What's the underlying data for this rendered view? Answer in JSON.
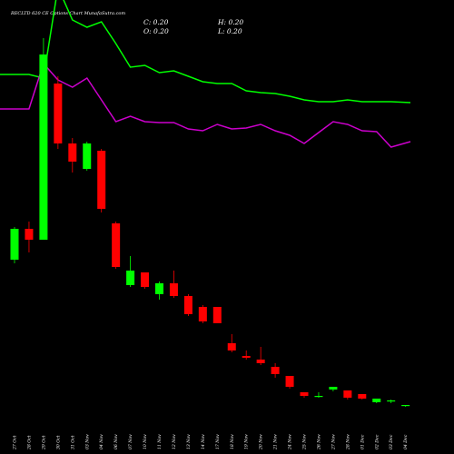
{
  "chart_data": {
    "type": "candlestick",
    "title": "RECLTD 620  CE Options  Chart MunafaSutra.com",
    "ohlc_readout": {
      "close": "C: 0.20",
      "open": "O: 0.20",
      "high": "H: 0.20",
      "low": "L: 0.20"
    },
    "categories": [
      "27 Oct",
      "28 Oct",
      "29 Oct",
      "30 Oct",
      "31 Oct",
      "03 Nov",
      "04 Nov",
      "06 Nov",
      "07 Nov",
      "10 Nov",
      "11 Nov",
      "12 Nov",
      "13 Nov",
      "14 Nov",
      "17 Nov",
      "18 Nov",
      "19 Nov",
      "20 Nov",
      "21 Nov",
      "24 Nov",
      "25 Nov",
      "26 Nov",
      "27 Nov",
      "28 Nov",
      "01 Dec",
      "02 Dec",
      "03 Dec",
      "04 Dec"
    ],
    "candles": [
      {
        "open": 3.2,
        "high": 5.0,
        "low": 3.0,
        "close": 4.9
      },
      {
        "open": 4.9,
        "high": 5.3,
        "low": 3.6,
        "close": 4.3
      },
      {
        "open": 4.3,
        "high": 15.4,
        "low": 4.3,
        "close": 14.5
      },
      {
        "open": 12.9,
        "high": 13.3,
        "low": 9.3,
        "close": 9.6
      },
      {
        "open": 9.6,
        "high": 9.9,
        "low": 8.0,
        "close": 8.6
      },
      {
        "open": 8.2,
        "high": 9.7,
        "low": 8.1,
        "close": 9.6
      },
      {
        "open": 9.2,
        "high": 9.3,
        "low": 5.8,
        "close": 6.0
      },
      {
        "open": 5.2,
        "high": 5.3,
        "low": 2.7,
        "close": 2.8
      },
      {
        "open": 1.8,
        "high": 3.4,
        "low": 1.7,
        "close": 2.6
      },
      {
        "open": 2.5,
        "high": 2.5,
        "low": 1.6,
        "close": 1.7
      },
      {
        "open": 1.3,
        "high": 2.0,
        "low": 1.0,
        "close": 1.9
      },
      {
        "open": 1.9,
        "high": 2.6,
        "low": 1.1,
        "close": 1.2
      },
      {
        "open": 1.2,
        "high": 1.3,
        "low": 0.1,
        "close": 0.2
      },
      {
        "open": 0.6,
        "high": 0.7,
        "low": -0.3,
        "close": -0.2
      },
      {
        "open": 0.6,
        "high": 0.6,
        "low": -0.3,
        "close": -0.3
      },
      {
        "open": -1.4,
        "high": -0.9,
        "low": -1.9,
        "close": -1.8
      },
      {
        "open": -2.1,
        "high": -1.8,
        "low": -2.3,
        "close": -2.2
      },
      {
        "open": -2.3,
        "high": -1.6,
        "low": -2.6,
        "close": -2.5
      },
      {
        "open": -2.7,
        "high": -2.5,
        "low": -3.3,
        "close": -3.1
      },
      {
        "open": -3.2,
        "high": -3.2,
        "low": -3.9,
        "close": -3.8
      },
      {
        "open": -4.1,
        "high": -4.1,
        "low": -4.4,
        "close": -4.3
      },
      {
        "open": -4.35,
        "high": -4.1,
        "low": -4.4,
        "close": -4.3
      },
      {
        "open": -3.95,
        "high": -3.8,
        "low": -4.05,
        "close": -3.8
      },
      {
        "open": -4.0,
        "high": -4.0,
        "low": -4.5,
        "close": -4.4
      },
      {
        "open": -4.2,
        "high": -4.2,
        "low": -4.5,
        "close": -4.45
      },
      {
        "open": -4.65,
        "high": -4.45,
        "low": -4.7,
        "close": -4.45
      },
      {
        "open": -4.6,
        "high": -4.5,
        "low": -4.7,
        "close": -4.55
      },
      {
        "open": -4.85,
        "high": -4.8,
        "low": -4.9,
        "close": -4.8
      }
    ],
    "overlay_series": [
      {
        "color": "#00ff00",
        "values": [
          13.4,
          13.4,
          13.2,
          18.2,
          16.4,
          16.0,
          16.3,
          15.1,
          13.8,
          13.9,
          13.5,
          13.6,
          13.3,
          13.0,
          12.9,
          12.9,
          12.5,
          12.4,
          12.35,
          12.2,
          12.0,
          11.9,
          11.9,
          12.0,
          11.9,
          11.9,
          11.9,
          11.85
        ]
      },
      {
        "color": "#cc00cc",
        "values": [
          11.5,
          11.5,
          14.0,
          13.1,
          12.7,
          13.2,
          12.0,
          10.8,
          11.1,
          10.8,
          10.75,
          10.75,
          10.4,
          10.3,
          10.65,
          10.4,
          10.45,
          10.65,
          10.3,
          10.05,
          9.6,
          10.2,
          10.8,
          10.65,
          10.3,
          10.25,
          9.4,
          9.7
        ]
      }
    ],
    "colors": {
      "up": "#00ff00",
      "down": "#ff0000",
      "background": "#000000",
      "text": "#ffffff"
    },
    "grid": false,
    "legend": "none",
    "xlabel": "",
    "ylabel": ""
  }
}
